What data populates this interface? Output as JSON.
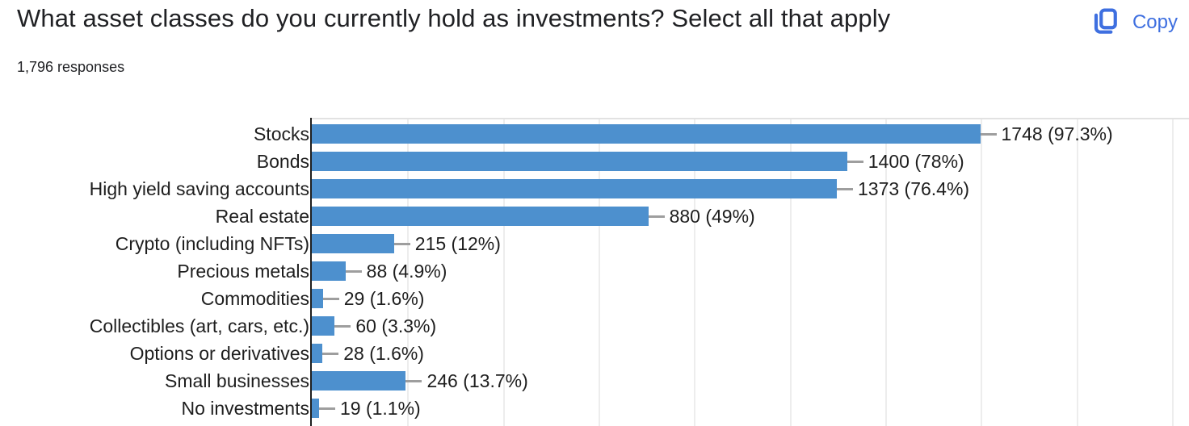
{
  "header": {
    "title": "What asset classes do you currently hold as investments? Select all that apply",
    "responses_count": "1,796 responses",
    "copy_label": "Copy"
  },
  "colors": {
    "bar": "#4d90ce",
    "copy_accent": "#3e6fe0",
    "axis": "#1f1f1f",
    "gridline": "#ededed",
    "connector": "#9e9e9e",
    "text": "#202124"
  },
  "chart_data": {
    "type": "bar",
    "orientation": "horizontal",
    "title": "What asset classes do you currently hold as investments? Select all that apply",
    "subtitle": "1,796 responses",
    "total_responses": 1796,
    "categories": [
      "Stocks",
      "Bonds",
      "High yield saving accounts",
      "Real estate",
      "Crypto (including NFTs)",
      "Precious metals",
      "Commodities",
      "Collectibles (art, cars, etc.)",
      "Options or derivatives",
      "Small businesses",
      "No investments"
    ],
    "values": [
      1748,
      1400,
      1373,
      880,
      215,
      88,
      29,
      60,
      28,
      246,
      19
    ],
    "percentages": [
      "97.3%",
      "78%",
      "76.4%",
      "49%",
      "12%",
      "4.9%",
      "1.6%",
      "3.3%",
      "1.6%",
      "13.7%",
      "1.1%"
    ],
    "value_labels": [
      "1748 (97.3%)",
      "1400 (78%)",
      "1373 (76.4%)",
      "880 (49%)",
      "215 (12%)",
      "88 (4.9%)",
      "29 (1.6%)",
      "60 (3.3%)",
      "28 (1.6%)",
      "246 (13.7%)",
      "19 (1.1%)"
    ],
    "xlabel": "",
    "ylabel": "",
    "xlim": [
      0,
      2294
    ],
    "gridline_step": 250,
    "grid": true,
    "legend": "none"
  }
}
